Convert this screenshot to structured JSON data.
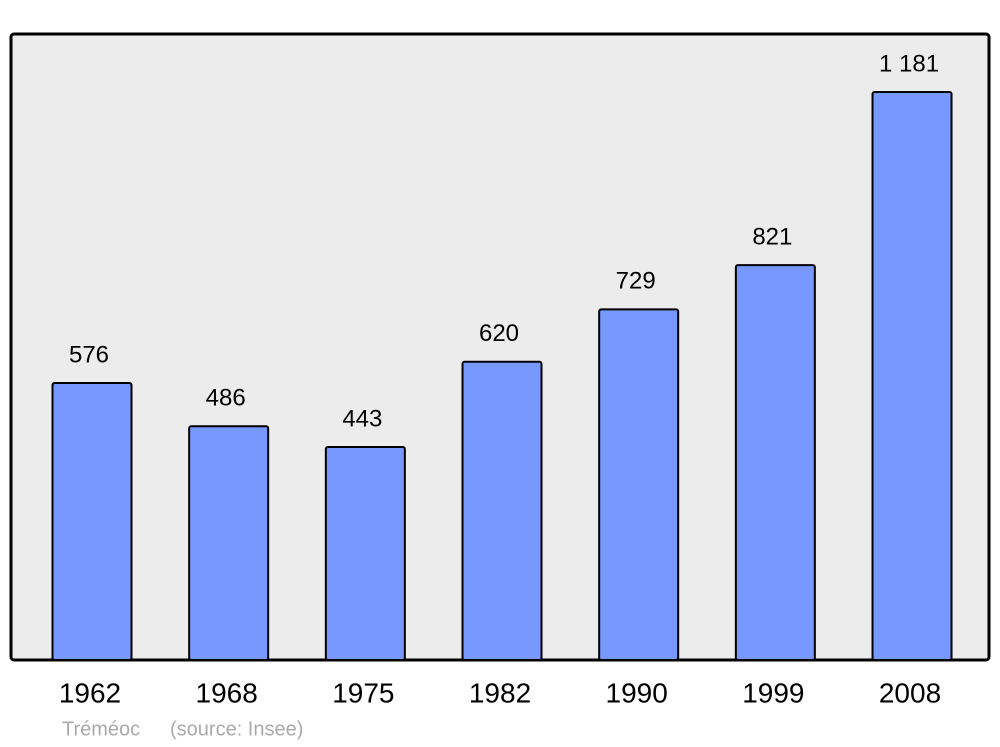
{
  "chart_data": {
    "type": "bar",
    "categories": [
      "1962",
      "1968",
      "1975",
      "1982",
      "1990",
      "1999",
      "2008"
    ],
    "values": [
      576,
      486,
      443,
      620,
      729,
      821,
      1181
    ],
    "value_labels": [
      "576",
      "486",
      "443",
      "620",
      "729",
      "821",
      "1 181"
    ],
    "color": "#7799ff",
    "place": "Tréméoc",
    "source": "(source: Insee)"
  }
}
